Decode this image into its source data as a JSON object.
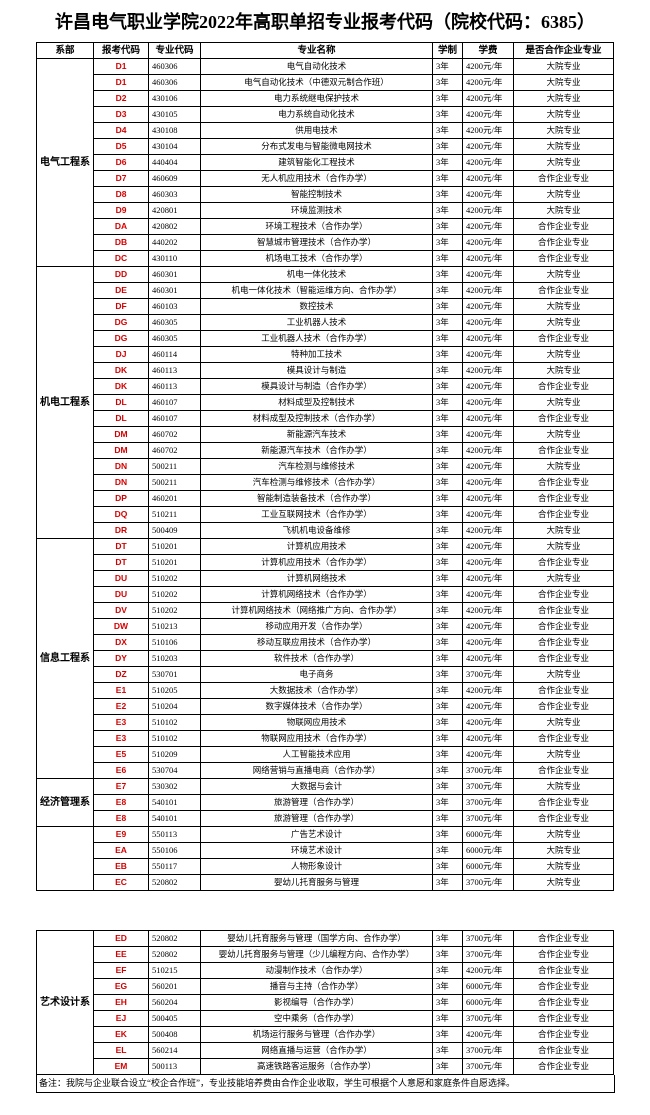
{
  "title": "许昌电气职业学院2022年高职单招专业报考代码（院校代码：6385）",
  "header": [
    "系部",
    "报考代码",
    "专业代码",
    "专业名称",
    "学制",
    "学费",
    "是否合作企业专业"
  ],
  "pages": [
    {
      "groups": [
        {
          "department": "电气工程系",
          "rows": [
            [
              "D1",
              "460306",
              "电气自动化技术",
              "3年",
              "4200元/年",
              "大院专业"
            ],
            [
              "D1",
              "460306",
              "电气自动化技术（中德双元制合作班）",
              "3年",
              "4200元/年",
              "大院专业"
            ],
            [
              "D2",
              "430106",
              "电力系统继电保护技术",
              "3年",
              "4200元/年",
              "大院专业"
            ],
            [
              "D3",
              "430105",
              "电力系统自动化技术",
              "3年",
              "4200元/年",
              "大院专业"
            ],
            [
              "D4",
              "430108",
              "供用电技术",
              "3年",
              "4200元/年",
              "大院专业"
            ],
            [
              "D5",
              "430104",
              "分布式发电与智能微电网技术",
              "3年",
              "4200元/年",
              "大院专业"
            ],
            [
              "D6",
              "440404",
              "建筑智能化工程技术",
              "3年",
              "4200元/年",
              "大院专业"
            ],
            [
              "D7",
              "460609",
              "无人机应用技术（合作办学）",
              "3年",
              "4200元/年",
              "合作企业专业"
            ],
            [
              "D8",
              "460303",
              "智能控制技术",
              "3年",
              "4200元/年",
              "大院专业"
            ],
            [
              "D9",
              "420801",
              "环境监测技术",
              "3年",
              "4200元/年",
              "大院专业"
            ],
            [
              "DA",
              "420802",
              "环境工程技术（合作办学）",
              "3年",
              "4200元/年",
              "合作企业专业"
            ],
            [
              "DB",
              "440202",
              "智慧城市管理技术（合作办学）",
              "3年",
              "4200元/年",
              "合作企业专业"
            ],
            [
              "DC",
              "430110",
              "机场电工技术（合作办学）",
              "3年",
              "4200元/年",
              "合作企业专业"
            ]
          ]
        },
        {
          "department": "机电工程系",
          "rows": [
            [
              "DD",
              "460301",
              "机电一体化技术",
              "3年",
              "4200元/年",
              "大院专业"
            ],
            [
              "DE",
              "460301",
              "机电一体化技术（智能运维方向、合作办学）",
              "3年",
              "4200元/年",
              "合作企业专业"
            ],
            [
              "DF",
              "460103",
              "数控技术",
              "3年",
              "4200元/年",
              "大院专业"
            ],
            [
              "DG",
              "460305",
              "工业机器人技术",
              "3年",
              "4200元/年",
              "大院专业"
            ],
            [
              "DG",
              "460305",
              "工业机器人技术（合作办学）",
              "3年",
              "4200元/年",
              "合作企业专业"
            ],
            [
              "DJ",
              "460114",
              "特种加工技术",
              "3年",
              "4200元/年",
              "大院专业"
            ],
            [
              "DK",
              "460113",
              "模具设计与制造",
              "3年",
              "4200元/年",
              "大院专业"
            ],
            [
              "DK",
              "460113",
              "模具设计与制造（合作办学）",
              "3年",
              "4200元/年",
              "合作企业专业"
            ],
            [
              "DL",
              "460107",
              "材料成型及控制技术",
              "3年",
              "4200元/年",
              "大院专业"
            ],
            [
              "DL",
              "460107",
              "材料成型及控制技术（合作办学）",
              "3年",
              "4200元/年",
              "合作企业专业"
            ],
            [
              "DM",
              "460702",
              "新能源汽车技术",
              "3年",
              "4200元/年",
              "大院专业"
            ],
            [
              "DM",
              "460702",
              "新能源汽车技术（合作办学）",
              "3年",
              "4200元/年",
              "合作企业专业"
            ],
            [
              "DN",
              "500211",
              "汽车检测与维修技术",
              "3年",
              "4200元/年",
              "大院专业"
            ],
            [
              "DN",
              "500211",
              "汽车检测与维修技术（合作办学）",
              "3年",
              "4200元/年",
              "合作企业专业"
            ],
            [
              "DP",
              "460201",
              "智能制造装备技术（合作办学）",
              "3年",
              "4200元/年",
              "合作企业专业"
            ],
            [
              "DQ",
              "510211",
              "工业互联网技术（合作办学）",
              "3年",
              "4200元/年",
              "合作企业专业"
            ],
            [
              "DR",
              "500409",
              "飞机机电设备维修",
              "3年",
              "4200元/年",
              "大院专业"
            ]
          ]
        },
        {
          "department": "信息工程系",
          "rows": [
            [
              "DT",
              "510201",
              "计算机应用技术",
              "3年",
              "4200元/年",
              "大院专业"
            ],
            [
              "DT",
              "510201",
              "计算机应用技术（合作办学）",
              "3年",
              "4200元/年",
              "合作企业专业"
            ],
            [
              "DU",
              "510202",
              "计算机网络技术",
              "3年",
              "4200元/年",
              "大院专业"
            ],
            [
              "DU",
              "510202",
              "计算机网络技术（合作办学）",
              "3年",
              "4200元/年",
              "合作企业专业"
            ],
            [
              "DV",
              "510202",
              "计算机网络技术（网络推广方向、合作办学）",
              "3年",
              "4200元/年",
              "合作企业专业"
            ],
            [
              "DW",
              "510213",
              "移动应用开发（合作办学）",
              "3年",
              "4200元/年",
              "合作企业专业"
            ],
            [
              "DX",
              "510106",
              "移动互联应用技术（合作办学）",
              "3年",
              "4200元/年",
              "合作企业专业"
            ],
            [
              "DY",
              "510203",
              "软件技术（合作办学）",
              "3年",
              "4200元/年",
              "合作企业专业"
            ],
            [
              "DZ",
              "530701",
              "电子商务",
              "3年",
              "3700元/年",
              "大院专业"
            ],
            [
              "E1",
              "510205",
              "大数据技术（合作办学）",
              "3年",
              "4200元/年",
              "合作企业专业"
            ],
            [
              "E2",
              "510204",
              "数字媒体技术（合作办学）",
              "3年",
              "4200元/年",
              "合作企业专业"
            ],
            [
              "E3",
              "510102",
              "物联网应用技术",
              "3年",
              "4200元/年",
              "大院专业"
            ],
            [
              "E3",
              "510102",
              "物联网应用技术（合作办学）",
              "3年",
              "4200元/年",
              "合作企业专业"
            ],
            [
              "E5",
              "510209",
              "人工智能技术应用",
              "3年",
              "4200元/年",
              "大院专业"
            ],
            [
              "E6",
              "530704",
              "网络营销与直播电商（合作办学）",
              "3年",
              "3700元/年",
              "合作企业专业"
            ]
          ]
        },
        {
          "department": "经济管理系",
          "rows": [
            [
              "E7",
              "530302",
              "大数据与会计",
              "3年",
              "3700元/年",
              "大院专业"
            ],
            [
              "E8",
              "540101",
              "旅游管理（合作办学）",
              "3年",
              "3700元/年",
              "合作企业专业"
            ],
            [
              "E8",
              "540101",
              "旅游管理（合作办学）",
              "3年",
              "3700元/年",
              "合作企业专业"
            ]
          ]
        },
        {
          "rows": [
            [
              "E9",
              "550113",
              "广告艺术设计",
              "3年",
              "6000元/年",
              "大院专业"
            ],
            [
              "EA",
              "550106",
              "环境艺术设计",
              "3年",
              "6000元/年",
              "大院专业"
            ],
            [
              "EB",
              "550117",
              "人物形象设计",
              "3年",
              "6000元/年",
              "大院专业"
            ],
            [
              "EC",
              "520802",
              "婴幼儿托育服务与管理",
              "3年",
              "3700元/年",
              "大院专业"
            ]
          ]
        }
      ]
    },
    {
      "groups": [
        {
          "department": "艺术设计系",
          "rows": [
            [
              "ED",
              "520802",
              "婴幼儿托育服务与管理（国学方向、合作办学）",
              "3年",
              "3700元/年",
              "合作企业专业"
            ],
            [
              "EE",
              "520802",
              "婴幼儿托育服务与管理（少儿编程方向、合作办学）",
              "3年",
              "3700元/年",
              "合作企业专业"
            ],
            [
              "EF",
              "510215",
              "动漫制作技术（合作办学）",
              "3年",
              "4200元/年",
              "合作企业专业"
            ],
            [
              "EG",
              "560201",
              "播音与主持（合作办学）",
              "3年",
              "6000元/年",
              "合作企业专业"
            ],
            [
              "EH",
              "560204",
              "影视编导（合作办学）",
              "3年",
              "6000元/年",
              "合作企业专业"
            ],
            [
              "EJ",
              "500405",
              "空中乘务（合作办学）",
              "3年",
              "3700元/年",
              "合作企业专业"
            ],
            [
              "EK",
              "500408",
              "机场运行服务与管理（合作办学）",
              "3年",
              "4200元/年",
              "合作企业专业"
            ],
            [
              "EL",
              "560214",
              "网络直播与运营（合作办学）",
              "3年",
              "3700元/年",
              "合作企业专业"
            ],
            [
              "EM",
              "500113",
              "高速铁路客运服务（合作办学）",
              "3年",
              "3700元/年",
              "合作企业专业"
            ]
          ]
        }
      ]
    }
  ],
  "note": "备注：我院与企业联合设立“校企合作班”，专业技能培养费由合作企业收取，学生可根据个人意愿和家庭条件自愿选择。"
}
